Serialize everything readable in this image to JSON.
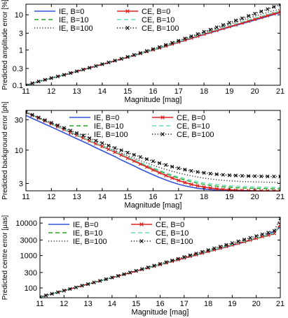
{
  "chart_data": [
    {
      "type": "line",
      "ylabel": "Predicted amplitude error [%]",
      "xlabel": "Magnitude [mag]",
      "yscale": "log",
      "xlim": [
        11,
        21
      ],
      "ylim": [
        0.1,
        20
      ],
      "xticks": [
        11,
        12,
        13,
        14,
        15,
        16,
        17,
        18,
        19,
        20,
        21
      ],
      "yticks": [
        0.1,
        0.3,
        1,
        3,
        10
      ],
      "ytick_labels": [
        "0.1",
        "0.3",
        "1",
        "3",
        "10"
      ],
      "grid": false,
      "legend": "top-left",
      "x": [
        11,
        11.25,
        11.5,
        11.75,
        12,
        12.25,
        12.5,
        12.75,
        13,
        13.25,
        13.5,
        13.75,
        14,
        14.25,
        14.5,
        14.75,
        15,
        15.25,
        15.5,
        15.75,
        16,
        16.25,
        16.5,
        16.75,
        17,
        17.25,
        17.5,
        17.75,
        18,
        18.25,
        18.5,
        18.75,
        19,
        19.25,
        19.5,
        19.75,
        20,
        20.25,
        20.5,
        20.75,
        21
      ],
      "series": [
        {
          "name": "IE, B=0",
          "color": "#3355dd",
          "style": "solid",
          "values": [
            0.1,
            0.113,
            0.127,
            0.142,
            0.158,
            0.176,
            0.196,
            0.219,
            0.246,
            0.276,
            0.31,
            0.348,
            0.39,
            0.436,
            0.49,
            0.55,
            0.62,
            0.7,
            0.79,
            0.89,
            1.0,
            1.13,
            1.28,
            1.45,
            1.65,
            1.88,
            2.13,
            2.42,
            2.74,
            3.1,
            3.5,
            3.95,
            4.45,
            5.0,
            5.6,
            6.3,
            7.1,
            8.0,
            9.0,
            10.2,
            11.5
          ]
        },
        {
          "name": "IE, B=10",
          "color": "#22aa22",
          "style": "dashed",
          "values": [
            0.1,
            0.113,
            0.127,
            0.142,
            0.158,
            0.176,
            0.196,
            0.219,
            0.246,
            0.276,
            0.31,
            0.348,
            0.39,
            0.437,
            0.491,
            0.552,
            0.622,
            0.703,
            0.794,
            0.896,
            1.01,
            1.14,
            1.3,
            1.47,
            1.68,
            1.92,
            2.18,
            2.49,
            2.83,
            3.22,
            3.65,
            4.14,
            4.7,
            5.32,
            6.0,
            6.8,
            7.7,
            8.7,
            9.8,
            11.0,
            12.3
          ]
        },
        {
          "name": "IE, B=100",
          "color": "#333333",
          "style": "dotted",
          "values": [
            0.1,
            0.113,
            0.127,
            0.142,
            0.158,
            0.176,
            0.196,
            0.219,
            0.246,
            0.276,
            0.31,
            0.349,
            0.391,
            0.438,
            0.493,
            0.556,
            0.628,
            0.711,
            0.806,
            0.914,
            1.04,
            1.18,
            1.35,
            1.54,
            1.77,
            2.03,
            2.33,
            2.68,
            3.08,
            3.55,
            4.08,
            4.7,
            5.4,
            6.2,
            7.1,
            8.1,
            9.2,
            10.4,
            11.7,
            13.1,
            14.5
          ]
        },
        {
          "name": "CE, B=0",
          "color": "#dd2222",
          "style": "solid",
          "marker": "x",
          "values": [
            0.1,
            0.114,
            0.128,
            0.143,
            0.16,
            0.178,
            0.198,
            0.222,
            0.249,
            0.279,
            0.313,
            0.352,
            0.395,
            0.442,
            0.497,
            0.558,
            0.63,
            0.71,
            0.8,
            0.9,
            1.02,
            1.15,
            1.3,
            1.48,
            1.68,
            1.92,
            2.18,
            2.48,
            2.82,
            3.2,
            3.62,
            4.1,
            4.62,
            5.2,
            5.85,
            6.6,
            7.45,
            8.4,
            9.5,
            10.7,
            12.0
          ]
        },
        {
          "name": "CE, B=10",
          "color": "#66ddbb",
          "style": "dashed",
          "values": [
            0.1,
            0.114,
            0.128,
            0.143,
            0.16,
            0.178,
            0.198,
            0.222,
            0.249,
            0.279,
            0.313,
            0.352,
            0.395,
            0.443,
            0.498,
            0.56,
            0.632,
            0.714,
            0.806,
            0.91,
            1.03,
            1.17,
            1.33,
            1.52,
            1.73,
            1.98,
            2.26,
            2.58,
            2.94,
            3.35,
            3.81,
            4.33,
            4.92,
            5.57,
            6.3,
            7.12,
            8.05,
            9.1,
            10.25,
            11.5,
            12.9
          ]
        },
        {
          "name": "CE, B=100",
          "color": "#111111",
          "style": "dotted",
          "marker": "x",
          "values": [
            0.1,
            0.114,
            0.128,
            0.143,
            0.16,
            0.178,
            0.198,
            0.222,
            0.249,
            0.279,
            0.314,
            0.353,
            0.397,
            0.446,
            0.502,
            0.566,
            0.641,
            0.727,
            0.826,
            0.94,
            1.07,
            1.22,
            1.4,
            1.61,
            1.85,
            2.13,
            2.46,
            2.85,
            3.3,
            3.82,
            4.43,
            5.13,
            5.95,
            6.9,
            8.0,
            9.3,
            10.8,
            12.5,
            14.5,
            16.8,
            19.5
          ]
        }
      ]
    },
    {
      "type": "line",
      "ylabel": "Predicted background error [ph]",
      "xlabel": "Magnitude [mag]",
      "yscale": "log",
      "xlim": [
        11,
        21
      ],
      "ylim": [
        2.3,
        42
      ],
      "xticks": [
        11,
        12,
        13,
        14,
        15,
        16,
        17,
        18,
        19,
        20,
        21
      ],
      "yticks": [
        3,
        10,
        30
      ],
      "ytick_labels": [
        "3",
        "10",
        "30"
      ],
      "grid": false,
      "legend": "top-right",
      "x": [
        11,
        11.25,
        11.5,
        11.75,
        12,
        12.25,
        12.5,
        12.75,
        13,
        13.25,
        13.5,
        13.75,
        14,
        14.25,
        14.5,
        14.75,
        15,
        15.25,
        15.5,
        15.75,
        16,
        16.25,
        16.5,
        16.75,
        17,
        17.25,
        17.5,
        17.75,
        18,
        18.25,
        18.5,
        18.75,
        19,
        19.25,
        19.5,
        19.75,
        20,
        20.25,
        20.5,
        20.75,
        21
      ],
      "series": [
        {
          "name": "IE, B=0",
          "color": "#3355dd",
          "style": "solid",
          "values": [
            35,
            31.5,
            28.4,
            25.6,
            23.1,
            20.8,
            18.7,
            16.8,
            15.1,
            13.6,
            12.2,
            10.9,
            9.8,
            8.8,
            7.9,
            7.0,
            6.3,
            5.65,
            5.05,
            4.55,
            4.1,
            3.72,
            3.4,
            3.13,
            2.92,
            2.75,
            2.62,
            2.52,
            2.45,
            2.4,
            2.36,
            2.33,
            2.31,
            2.3,
            2.29,
            2.28,
            2.28,
            2.28,
            2.28,
            2.28,
            2.28
          ]
        },
        {
          "name": "IE, B=10",
          "color": "#22aa22",
          "style": "dashed",
          "values": [
            39,
            35.3,
            31.9,
            28.8,
            26.0,
            23.5,
            21.2,
            19.2,
            17.3,
            15.6,
            14.1,
            12.7,
            11.5,
            10.4,
            9.4,
            8.5,
            7.7,
            6.95,
            6.3,
            5.7,
            5.15,
            4.68,
            4.27,
            3.92,
            3.63,
            3.39,
            3.19,
            3.03,
            2.9,
            2.8,
            2.72,
            2.66,
            2.62,
            2.58,
            2.55,
            2.53,
            2.51,
            2.5,
            2.49,
            2.48,
            2.47
          ]
        },
        {
          "name": "IE, B=100",
          "color": "#333333",
          "style": "dotted",
          "values": [
            39,
            35.3,
            31.9,
            28.8,
            26.0,
            23.5,
            21.3,
            19.3,
            17.5,
            15.8,
            14.3,
            13.0,
            11.8,
            10.8,
            9.8,
            8.95,
            8.2,
            7.5,
            6.85,
            6.28,
            5.78,
            5.35,
            4.97,
            4.65,
            4.38,
            4.15,
            3.95,
            3.78,
            3.64,
            3.53,
            3.44,
            3.36,
            3.3,
            3.26,
            3.22,
            3.19,
            3.17,
            3.15,
            3.14,
            3.13,
            3.12
          ]
        },
        {
          "name": "CE, B=0",
          "color": "#dd2222",
          "style": "solid",
          "marker": "x",
          "values": [
            39,
            35.2,
            31.8,
            28.7,
            25.9,
            23.4,
            21.1,
            19.0,
            17.2,
            15.5,
            14.0,
            12.6,
            11.4,
            10.3,
            9.3,
            8.35,
            7.5,
            6.75,
            6.05,
            5.45,
            4.9,
            4.42,
            4.0,
            3.65,
            3.35,
            3.1,
            2.9,
            2.75,
            2.63,
            2.54,
            2.47,
            2.42,
            2.38,
            2.35,
            2.33,
            2.31,
            2.3,
            2.29,
            2.28,
            2.28,
            2.27
          ]
        },
        {
          "name": "CE, B=10",
          "color": "#66ddbb",
          "style": "dashed",
          "values": [
            39,
            35.3,
            31.9,
            28.8,
            26.0,
            23.5,
            21.3,
            19.2,
            17.4,
            15.7,
            14.2,
            12.8,
            11.6,
            10.5,
            9.5,
            8.6,
            7.8,
            7.05,
            6.4,
            5.8,
            5.28,
            4.82,
            4.42,
            4.08,
            3.8,
            3.56,
            3.36,
            3.2,
            3.07,
            2.96,
            2.88,
            2.81,
            2.76,
            2.72,
            2.69,
            2.66,
            2.64,
            2.62,
            2.61,
            2.6,
            2.59
          ]
        },
        {
          "name": "CE, B=100",
          "color": "#111111",
          "style": "dotted",
          "marker": "x",
          "values": [
            39.5,
            35.9,
            32.6,
            29.6,
            26.9,
            24.5,
            22.3,
            20.3,
            18.5,
            16.9,
            15.4,
            14.1,
            12.9,
            11.8,
            10.8,
            9.95,
            9.15,
            8.45,
            7.8,
            7.22,
            6.7,
            6.25,
            5.85,
            5.5,
            5.2,
            4.95,
            4.73,
            4.55,
            4.4,
            4.28,
            4.18,
            4.1,
            4.04,
            3.99,
            3.95,
            3.92,
            3.9,
            3.88,
            3.87,
            3.86,
            3.86
          ]
        }
      ]
    },
    {
      "type": "line",
      "ylabel": "Predicted centre error [µas]",
      "xlabel": "Magnitude [mag]",
      "yscale": "log",
      "xlim": [
        11,
        21
      ],
      "ylim": [
        50,
        15000
      ],
      "xticks": [
        11,
        12,
        13,
        14,
        15,
        16,
        17,
        18,
        19,
        20,
        21
      ],
      "yticks": [
        100,
        300,
        1000,
        3000,
        10000
      ],
      "ytick_labels": [
        "100",
        "300",
        "1000",
        "3000",
        "10000"
      ],
      "grid": false,
      "legend": "top-left",
      "x": [
        11,
        11.25,
        11.5,
        11.75,
        12,
        12.25,
        12.5,
        12.75,
        13,
        13.25,
        13.5,
        13.75,
        14,
        14.25,
        14.5,
        14.75,
        15,
        15.25,
        15.5,
        15.75,
        16,
        16.25,
        16.5,
        16.75,
        17,
        17.25,
        17.5,
        17.75,
        18,
        18.25,
        18.5,
        18.75,
        19,
        19.25,
        19.5,
        19.75,
        20,
        20.25,
        20.5,
        20.75,
        21
      ],
      "series": [
        {
          "name": "IE, B=0",
          "color": "#3355dd",
          "style": "solid",
          "values": [
            52,
            59,
            66,
            74,
            83,
            93,
            104,
            117,
            131,
            147,
            165,
            185,
            208,
            233,
            262,
            294,
            330,
            370,
            415,
            465,
            522,
            586,
            657,
            737,
            826,
            926,
            1040,
            1165,
            1305,
            1460,
            1635,
            1830,
            2050,
            2300,
            2600,
            2950,
            3350,
            3900,
            4600,
            5500,
            7500
          ]
        },
        {
          "name": "IE, B=10",
          "color": "#22aa22",
          "style": "dashed",
          "values": [
            52,
            59,
            66,
            74,
            83,
            93,
            104,
            117,
            131,
            147,
            165,
            185,
            208,
            233,
            262,
            294,
            330,
            371,
            416,
            467,
            524,
            588,
            660,
            741,
            832,
            934,
            1048,
            1177,
            1320,
            1480,
            1660,
            1862,
            2090,
            2345,
            2632,
            2954,
            3315,
            3720,
            4170,
            4680,
            9300
          ]
        },
        {
          "name": "IE, B=100",
          "color": "#333333",
          "style": "dotted",
          "values": [
            52,
            59,
            66,
            74,
            83,
            93,
            104,
            117,
            131,
            147,
            165,
            185,
            208,
            234,
            263,
            295,
            332,
            373,
            419,
            471,
            530,
            596,
            670,
            753,
            847,
            953,
            1072,
            1205,
            1355,
            1523,
            1713,
            1926,
            2165,
            2435,
            2738,
            3078,
            3460,
            3890,
            4375,
            4920,
            9600
          ]
        },
        {
          "name": "CE, B=0",
          "color": "#dd2222",
          "style": "solid",
          "marker": "x",
          "values": [
            52,
            59,
            66,
            74,
            83,
            93,
            104,
            117,
            131,
            147,
            165,
            185,
            208,
            233,
            262,
            294,
            331,
            372,
            418,
            470,
            528,
            593,
            666,
            748,
            840,
            944,
            1060,
            1190,
            1337,
            1502,
            1687,
            1895,
            2129,
            2392,
            2687,
            3018,
            3390,
            3808,
            4278,
            4805,
            9000
          ]
        },
        {
          "name": "CE, B=10",
          "color": "#66ddbb",
          "style": "dashed",
          "values": [
            52,
            59,
            66,
            74,
            83,
            93,
            104,
            117,
            131,
            147,
            165,
            185,
            208,
            234,
            263,
            295,
            332,
            374,
            420,
            473,
            532,
            598,
            673,
            757,
            851,
            957,
            1077,
            1211,
            1362,
            1532,
            1723,
            1938,
            2180,
            2452,
            2758,
            3102,
            3489,
            3925,
            4415,
            4966,
            9400
          ]
        },
        {
          "name": "CE, B=100",
          "color": "#111111",
          "style": "dotted",
          "marker": "x",
          "values": [
            52,
            59,
            66,
            74,
            83,
            93,
            104,
            118,
            132,
            148,
            166,
            187,
            210,
            237,
            267,
            301,
            340,
            384,
            434,
            490,
            553,
            625,
            706,
            798,
            902,
            1020,
            1153,
            1304,
            1475,
            1669,
            1888,
            2137,
            2419,
            2739,
            3101,
            3511,
            3976,
            4503,
            5100,
            5777,
            14000
          ]
        }
      ]
    }
  ]
}
